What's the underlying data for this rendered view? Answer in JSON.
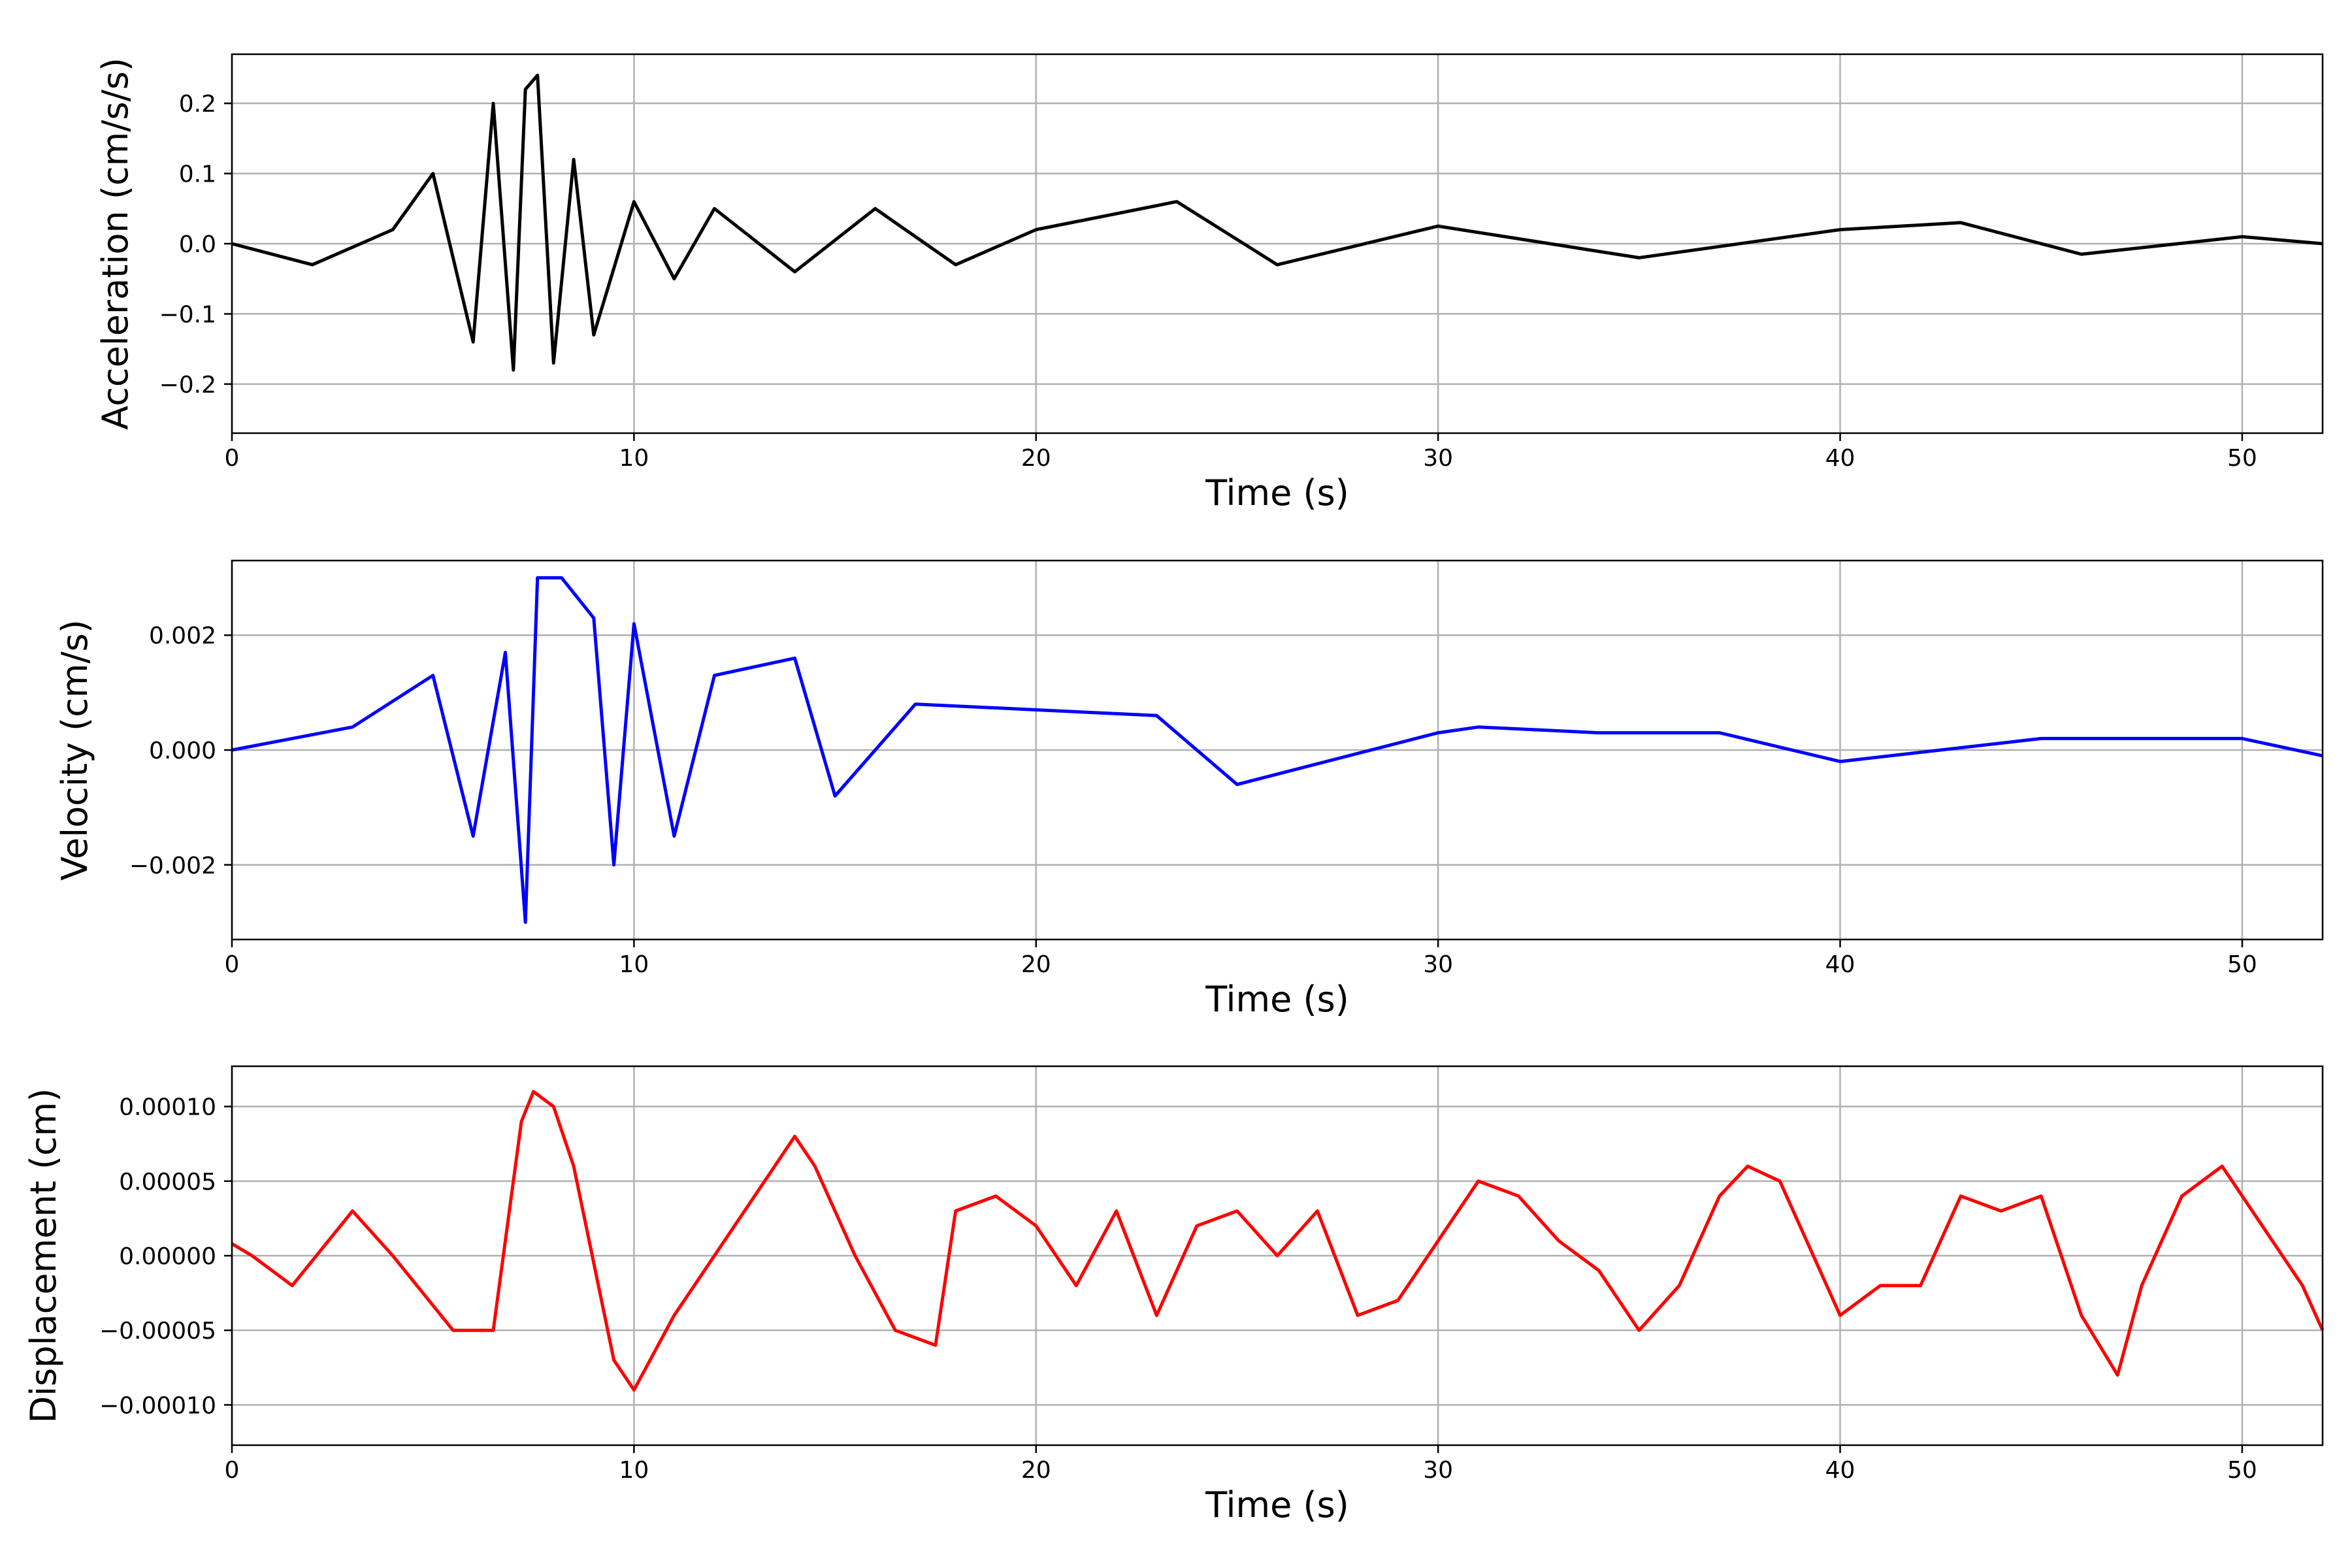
{
  "chart_data": [
    {
      "type": "line",
      "title": "",
      "xlabel": "Time (s)",
      "ylabel": "Acceleration (cm/s/s)",
      "xlim": [
        0,
        52
      ],
      "ylim": [
        -0.27,
        0.27
      ],
      "xticks": [
        0,
        10,
        20,
        30,
        40,
        50
      ],
      "xtick_labels": [
        "0",
        "10",
        "20",
        "30",
        "40",
        "50"
      ],
      "yticks": [
        -0.2,
        -0.1,
        0.0,
        0.1,
        0.2
      ],
      "ytick_labels": [
        "−0.2",
        "−0.1",
        "0.0",
        "0.1",
        "0.2"
      ],
      "grid": true,
      "legend": "none",
      "color": "#000000",
      "series": [
        {
          "x": [
            0,
            2,
            4,
            5,
            6,
            6.5,
            7,
            7.3,
            7.6,
            8,
            8.5,
            9,
            10,
            11,
            12,
            14,
            16,
            18,
            20,
            23.5,
            26,
            30,
            35,
            40,
            43,
            46,
            50,
            52
          ],
          "y": [
            0.0,
            -0.03,
            0.02,
            0.1,
            -0.14,
            0.2,
            -0.18,
            0.22,
            0.24,
            -0.17,
            0.12,
            -0.13,
            0.06,
            -0.05,
            0.05,
            -0.04,
            0.05,
            -0.03,
            0.02,
            0.06,
            -0.03,
            0.025,
            -0.02,
            0.02,
            0.03,
            -0.015,
            0.01,
            0.0
          ]
        }
      ]
    },
    {
      "type": "line",
      "title": "",
      "xlabel": "Time (s)",
      "ylabel": "Velocity (cm/s)",
      "xlim": [
        0,
        52
      ],
      "ylim": [
        -0.0033,
        0.0033
      ],
      "xticks": [
        0,
        10,
        20,
        30,
        40,
        50
      ],
      "xtick_labels": [
        "0",
        "10",
        "20",
        "30",
        "40",
        "50"
      ],
      "yticks": [
        -0.002,
        0.0,
        0.002
      ],
      "ytick_labels": [
        "−0.002",
        "0.000",
        "0.002"
      ],
      "grid": true,
      "legend": "none",
      "color": "#0000ff",
      "series": [
        {
          "x": [
            0,
            3,
            5,
            6,
            6.8,
            7.3,
            7.6,
            8.2,
            9,
            9.5,
            10,
            11,
            12,
            14,
            15,
            17,
            20,
            23,
            25,
            30,
            31,
            34,
            37,
            40,
            45,
            50,
            52
          ],
          "y": [
            0.0,
            0.0004,
            0.0013,
            -0.0015,
            0.0017,
            -0.003,
            0.003,
            0.003,
            0.0023,
            -0.002,
            0.0022,
            -0.0015,
            0.0013,
            0.0016,
            -0.0008,
            0.0008,
            0.0007,
            0.0006,
            -0.0006,
            0.0003,
            0.0004,
            0.0003,
            0.0003,
            -0.0002,
            0.0002,
            0.0002,
            -0.0001
          ]
        }
      ]
    },
    {
      "type": "line",
      "title": "",
      "xlabel": "Time (s)",
      "ylabel": "Displacement (cm)",
      "xlim": [
        0,
        52
      ],
      "ylim": [
        -0.000127,
        0.000127
      ],
      "xticks": [
        0,
        10,
        20,
        30,
        40,
        50
      ],
      "xtick_labels": [
        "0",
        "10",
        "20",
        "30",
        "40",
        "50"
      ],
      "yticks": [
        -0.0001,
        -5e-05,
        0.0,
        5e-05,
        0.0001
      ],
      "ytick_labels": [
        "−0.00010",
        "−0.00005",
        "0.00000",
        "0.00005",
        "0.00010"
      ],
      "grid": true,
      "legend": "none",
      "color": "#ff0000",
      "series": [
        {
          "x": [
            0,
            0.5,
            1.5,
            3,
            4,
            5.5,
            6.5,
            7.2,
            7.5,
            8,
            8.5,
            9.5,
            10,
            11,
            12,
            13,
            14,
            14.5,
            15.5,
            16.5,
            17.5,
            18,
            19,
            20,
            21,
            22,
            23,
            24,
            25,
            26,
            27,
            28,
            29,
            30,
            31,
            32,
            33,
            34,
            35,
            36,
            37,
            37.7,
            38.5,
            39,
            40,
            41,
            42,
            43,
            44,
            45,
            46,
            46.9,
            47.5,
            48.5,
            49.5,
            50.5,
            51.5,
            52
          ],
          "y": [
            8e-06,
            0.0,
            -2e-05,
            3e-05,
            0.0,
            -5e-05,
            -5e-05,
            9e-05,
            0.00011,
            0.0001,
            6e-05,
            -7e-05,
            -9e-05,
            -4e-05,
            0.0,
            4e-05,
            8e-05,
            6e-05,
            0.0,
            -5e-05,
            -6e-05,
            3e-05,
            4e-05,
            2e-05,
            -2e-05,
            3e-05,
            -4e-05,
            2e-05,
            3e-05,
            0.0,
            3e-05,
            -4e-05,
            -3e-05,
            1e-05,
            5e-05,
            4e-05,
            1e-05,
            -1e-05,
            -5e-05,
            -2e-05,
            4e-05,
            6e-05,
            5e-05,
            2e-05,
            -4e-05,
            -2e-05,
            -2e-05,
            4e-05,
            3e-05,
            4e-05,
            -4e-05,
            -8e-05,
            -2e-05,
            4e-05,
            6e-05,
            2e-05,
            -2e-05,
            -5e-05
          ]
        }
      ]
    }
  ]
}
